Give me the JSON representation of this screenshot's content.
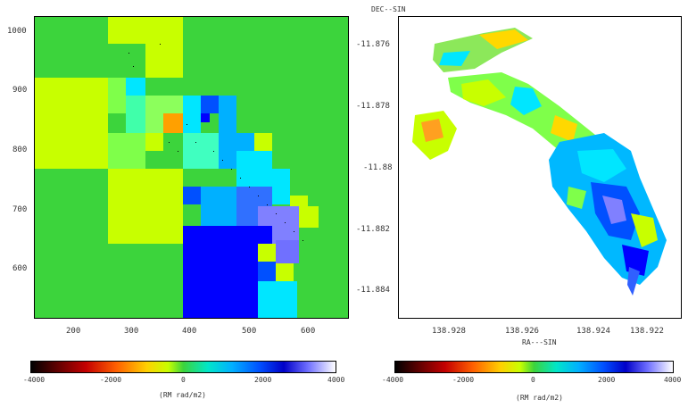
{
  "left_panel": {
    "y_ticks": [
      "1000",
      "900",
      "800",
      "700",
      "600"
    ],
    "x_ticks": [
      "200",
      "300",
      "400",
      "500",
      "600"
    ]
  },
  "right_panel": {
    "axis_top": "DEC--SIN",
    "y_ticks": [
      "-11.876",
      "-11.878",
      "-11.88",
      "-11.882",
      "-11.884"
    ],
    "x_ticks": [
      "138.928",
      "138.926",
      "138.924",
      "138.922"
    ],
    "x_title": "RA---SIN"
  },
  "left_colorbar": {
    "ticks": [
      "-4000",
      "-2000",
      "0",
      "2000",
      "4000"
    ],
    "label": "(RM rad/m2)"
  },
  "right_colorbar": {
    "ticks": [
      "-4000",
      "-2000",
      "0",
      "2000",
      "4000"
    ],
    "label": "(RM rad/m2)"
  },
  "colors": {
    "background_green": "#3cd43c",
    "yellow_green": "#c8ff00",
    "cyan": "#00e6ff",
    "blue": "#0000ff"
  }
}
